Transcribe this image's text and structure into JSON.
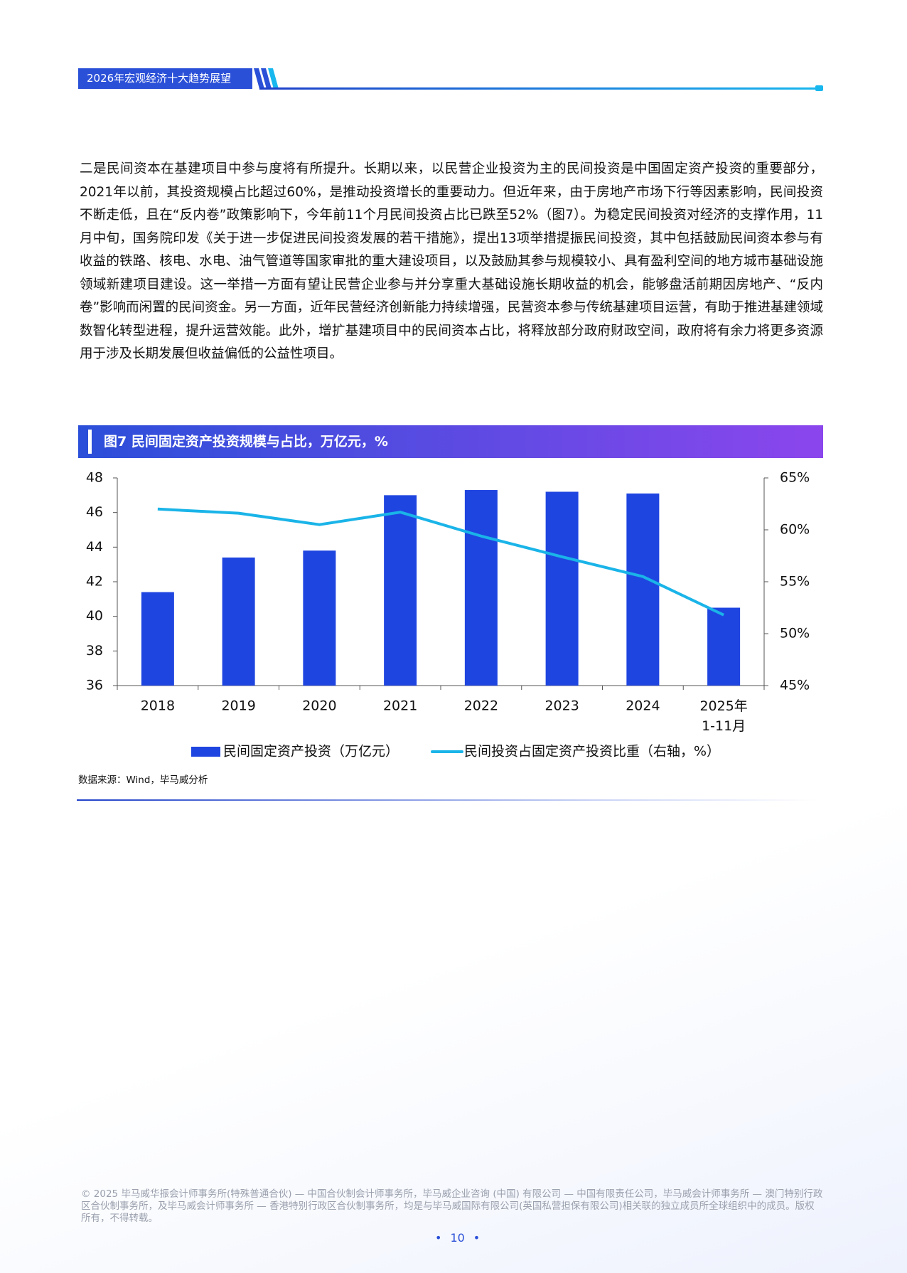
{
  "header": {
    "title": "2026年宏观经济十大趋势展望"
  },
  "body": "二是民间资本在基建项目中参与度将有所提升。长期以来，以民营企业投资为主的民间投资是中国固定资产投资的重要部分，2021年以前，其投资规模占比超过60%，是推动投资增长的重要动力。但近年来，由于房地产市场下行等因素影响，民间投资不断走低，且在“反内卷”政策影响下，今年前11个月民间投资占比已跌至52%（图7）。为稳定民间投资对经济的支撑作用，11月中旬，国务院印发《关于进一步促进民间投资发展的若干措施》，提出13项举措提振民间投资，其中包括鼓励民间资本参与有收益的铁路、核电、水电、油气管道等国家审批的重大建设项目，以及鼓励其参与规模较小、具有盈利空间的地方城市基础设施领域新建项目建设。这一举措一方面有望让民营企业参与并分享重大基础设施长期收益的机会，能够盘活前期因房地产、“反内卷”影响而闲置的民间资金。另一方面，近年民营经济创新能力持续增强，民营资本参与传统基建项目运营，有助于推进基建领域数智化转型进程，提升运营效能。此外，增扩基建项目中的民间资本占比，将释放部分政府财政空间，政府将有余力将更多资源用于涉及长期发展但收益偏低的公益性项目。",
  "chart_data": {
    "type": "bar_line",
    "title": "图7 民间固定资产投资规模与占比，万亿元，%",
    "categories": [
      "2018",
      "2019",
      "2020",
      "2021",
      "2022",
      "2023",
      "2024",
      "2025年\n1-11月"
    ],
    "series": [
      {
        "name": "民间固定资产投资（万亿元）",
        "type": "bar",
        "color": "#1f45e0",
        "values": [
          41.4,
          43.4,
          43.8,
          47.0,
          47.3,
          47.2,
          47.1,
          40.5
        ]
      },
      {
        "name": "民间投资占固定资产投资比重（右轴，%）",
        "type": "line",
        "axis": "y2",
        "color": "#1ab4e8",
        "values": [
          62.0,
          61.6,
          60.5,
          61.7,
          59.4,
          57.4,
          55.5,
          51.8
        ]
      }
    ],
    "ylim": [
      36,
      48
    ],
    "yticks": [
      36,
      38,
      40,
      42,
      44,
      46,
      48
    ],
    "y2lim": [
      45,
      65
    ],
    "y2ticks": [
      {
        "value": 45,
        "label": "45%"
      },
      {
        "value": 50,
        "label": "50%"
      },
      {
        "value": 55,
        "label": "55%"
      },
      {
        "value": 60,
        "label": "60%"
      },
      {
        "value": 65,
        "label": "65%"
      }
    ],
    "grid": false,
    "legend": "bottom"
  },
  "source": "数据来源：Wind，毕马威分析",
  "footer": "© 2025 毕马威华振会计师事务所(特殊普通合伙) — 中国合伙制会计师事务所，毕马威企业咨询 (中国) 有限公司 — 中国有限责任公司，毕马威会计师事务所 — 澳门特别行政区合伙制事务所，及毕马威会计师事务所 — 香港特别行政区合伙制事务所，均是与毕马威国际有限公司(英国私营担保有限公司)相关联的独立成员所全球组织中的成员。版权所有，不得转载。",
  "page_number": "10"
}
